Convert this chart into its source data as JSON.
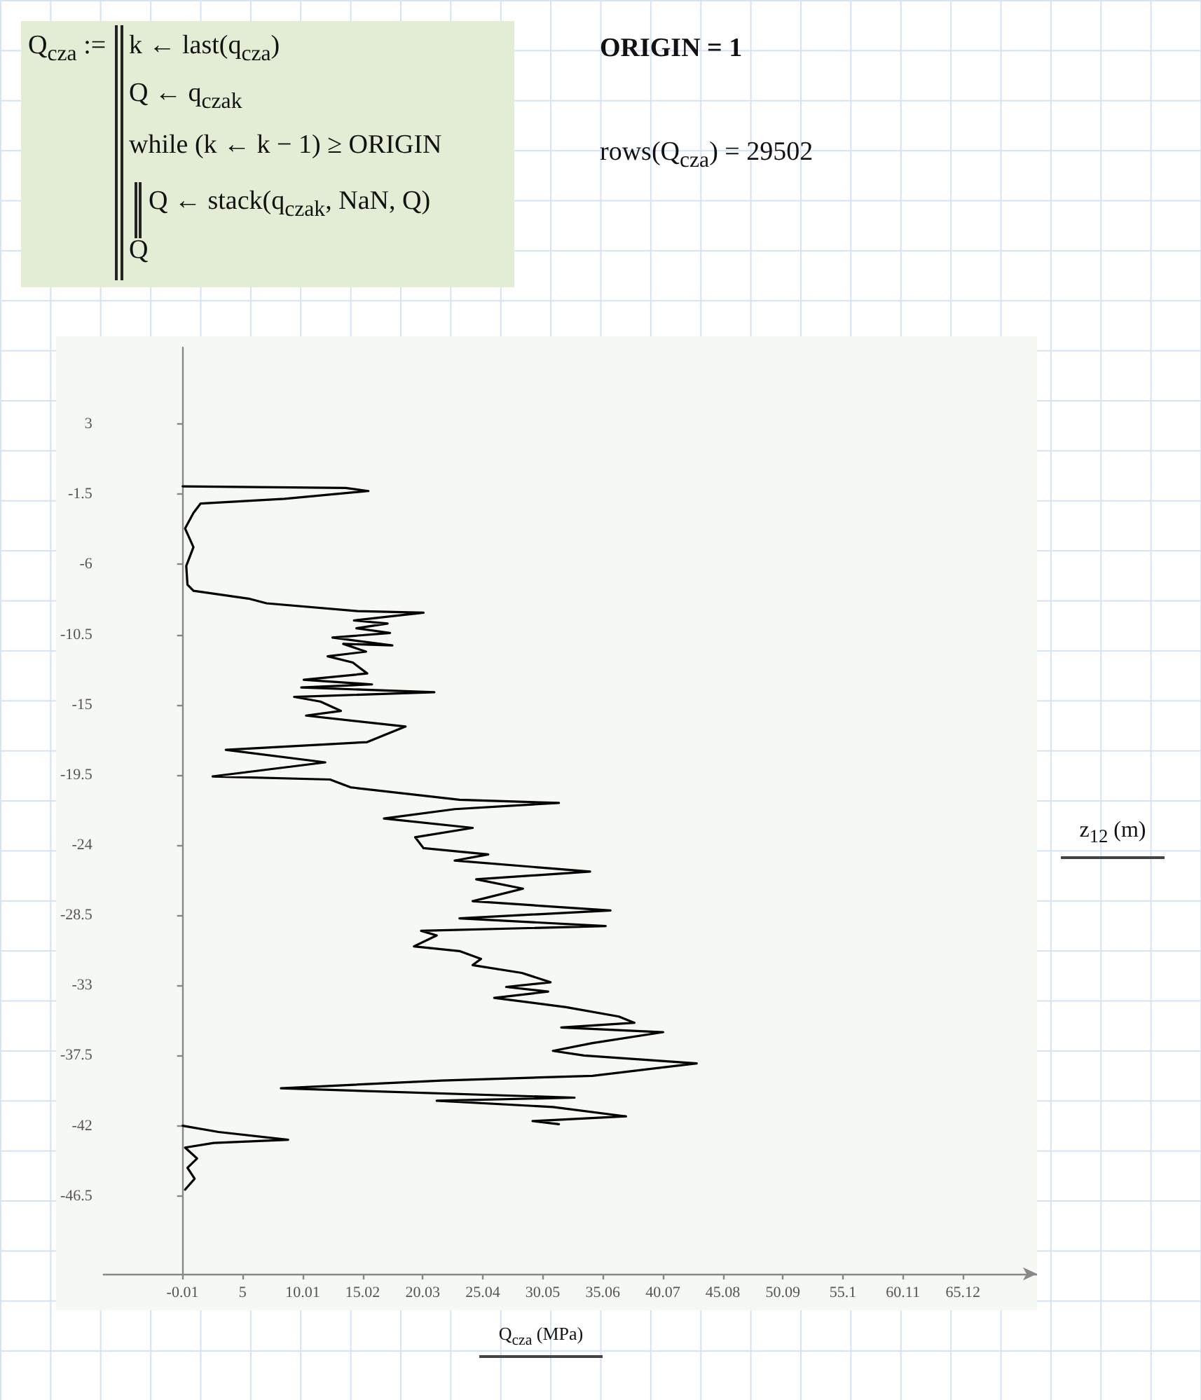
{
  "chart_data": {
    "type": "line",
    "xlabel": "Q$_{cza}$ (MPa)",
    "ylabel": "z$_{12}$ (m)",
    "xlim": [
      -6.6,
      71.3
    ],
    "ylim": [
      -51.5,
      7.9
    ],
    "xticks": [
      -0.01,
      5,
      10.01,
      15.02,
      20.03,
      25.04,
      30.05,
      35.06,
      40.07,
      45.08,
      50.09,
      55.1,
      60.11,
      65.12
    ],
    "yticks": [
      3,
      -1.5,
      -6,
      -10.5,
      -15,
      -19.5,
      -24,
      -28.5,
      -33,
      -37.5,
      -42,
      -46.5
    ],
    "annotations": [
      "Q$_{cza}$ :=",
      "k ← last(q$_{cza}$)",
      "Q ← q$_{cza}$$_{k}$",
      "while (k ← k − 1) ≥ ORIGIN",
      "Q ← stack(q$_{cza}$$_{k}$, NaN, Q)",
      "Q",
      "ORIGIN = 1",
      "rows(Q$_{cza}$) = 29502"
    ],
    "series": [
      {
        "color": "#000000",
        "x": [
          0,
          13.6,
          15.5,
          8.5,
          1.5,
          0.9,
          0.2,
          0.9,
          0.3,
          0.4,
          0.9,
          5.5,
          7.0,
          14.6,
          20.1,
          14.3,
          17.1,
          14.5,
          17.3,
          12.5,
          17.5,
          13.4,
          15.3,
          12.1,
          14.2,
          15.4,
          10.1,
          15.8,
          9.9,
          21.0,
          9.3,
          11.5,
          13.2,
          10.3,
          18.6,
          15.4,
          3.6,
          11.9,
          2.5,
          12.3,
          14.0,
          23.1,
          31.4,
          22.7,
          16.8,
          24.2,
          19.4,
          20.1,
          25.5,
          22.7,
          34.0,
          24.5,
          28.4,
          24.2,
          35.7,
          23.1,
          35.3,
          19.9,
          21.2,
          19.3,
          23.1,
          24.9,
          24.2,
          28.3,
          30.7,
          27.0,
          30.5,
          26.0,
          32.0,
          36.4,
          37.7,
          31.6,
          40.1,
          34.2,
          30.9,
          33.5,
          42.9,
          34.2,
          21.6,
          8.2,
          32.7,
          21.2,
          30.9,
          37.0,
          29.2,
          31.4
        ],
        "values": [
          -1.0,
          -1.1,
          -1.3,
          -1.8,
          -2.1,
          -2.7,
          -3.7,
          -4.9,
          -6.1,
          -7.3,
          -7.7,
          -8.2,
          -8.5,
          -9.0,
          -9.1,
          -9.6,
          -9.8,
          -10.1,
          -10.4,
          -10.7,
          -11.2,
          -11.1,
          -11.6,
          -11.9,
          -12.3,
          -13.0,
          -13.4,
          -13.7,
          -13.9,
          -14.2,
          -14.5,
          -14.8,
          -15.4,
          -15.7,
          -16.4,
          -17.4,
          -17.9,
          -18.7,
          -19.6,
          -19.8,
          -20.3,
          -21.1,
          -21.3,
          -21.7,
          -22.3,
          -22.9,
          -23.5,
          -24.2,
          -24.6,
          -25.0,
          -25.7,
          -26.2,
          -26.8,
          -27.6,
          -28.2,
          -28.7,
          -29.2,
          -29.5,
          -29.8,
          -30.5,
          -30.8,
          -31.3,
          -31.7,
          -32.2,
          -32.8,
          -33.1,
          -33.4,
          -33.8,
          -34.4,
          -35.0,
          -35.4,
          -35.7,
          -36.0,
          -36.7,
          -37.2,
          -37.5,
          -38.0,
          -38.8,
          -39.1,
          -39.6,
          -40.2,
          -40.4,
          -40.8,
          -41.4,
          -41.7,
          -41.9
        ]
      },
      {
        "color": "#000000",
        "x": [
          0.0,
          3.0,
          8.8,
          2.6,
          0.2,
          1.2,
          0.4,
          1.0,
          0.2
        ],
        "values": [
          -42.0,
          -42.4,
          -42.9,
          -43.1,
          -43.4,
          -44.1,
          -44.7,
          -45.4,
          -46.1
        ]
      }
    ]
  }
}
